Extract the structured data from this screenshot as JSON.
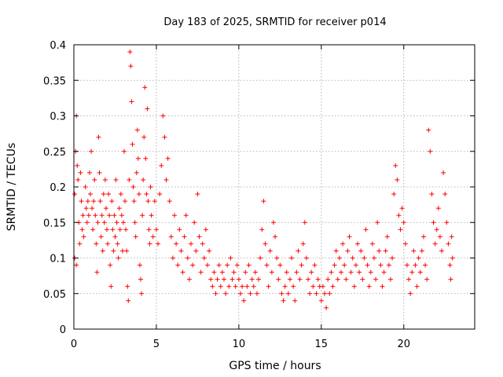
{
  "chart_data": {
    "type": "scatter",
    "title": "Day 183 of 2025, SRMTID for receiver p014",
    "xlabel": "GPS time / hours",
    "ylabel": "SRMTID / TECUs",
    "xlim": [
      0,
      24.3
    ],
    "ylim": [
      0,
      0.4
    ],
    "xticks": [
      0,
      5,
      10,
      15,
      20
    ],
    "xtick_labels": [
      "0",
      "5",
      "10",
      "15",
      "20"
    ],
    "yticks": [
      0,
      0.05,
      0.1,
      0.15,
      0.2,
      0.25,
      0.3,
      0.35,
      0.4
    ],
    "ytick_labels": [
      "0",
      "0.05",
      "0.1",
      "0.15",
      "0.2",
      "0.25",
      "0.3",
      "0.35",
      "0.4"
    ],
    "grid": true,
    "marker": "+",
    "color": "#ff0000",
    "series": [
      {
        "name": "SRMTID",
        "points": [
          [
            0.05,
            0.19
          ],
          [
            0.1,
            0.25
          ],
          [
            0.15,
            0.3
          ],
          [
            0.2,
            0.23
          ],
          [
            0.25,
            0.21
          ],
          [
            0.3,
            0.15
          ],
          [
            0.35,
            0.12
          ],
          [
            0.05,
            0.1
          ],
          [
            0.15,
            0.09
          ],
          [
            0.4,
            0.22
          ],
          [
            0.45,
            0.18
          ],
          [
            0.5,
            0.14
          ],
          [
            0.55,
            0.16
          ],
          [
            0.6,
            0.13
          ],
          [
            0.7,
            0.2
          ],
          [
            0.75,
            0.17
          ],
          [
            0.8,
            0.15
          ],
          [
            0.85,
            0.18
          ],
          [
            0.9,
            0.16
          ],
          [
            0.95,
            0.22
          ],
          [
            1.0,
            0.19
          ],
          [
            1.05,
            0.25
          ],
          [
            1.1,
            0.17
          ],
          [
            1.15,
            0.14
          ],
          [
            1.2,
            0.18
          ],
          [
            1.25,
            0.21
          ],
          [
            1.3,
            0.16
          ],
          [
            1.35,
            0.12
          ],
          [
            1.4,
            0.08
          ],
          [
            1.45,
            0.15
          ],
          [
            1.5,
            0.27
          ],
          [
            1.55,
            0.22
          ],
          [
            1.6,
            0.18
          ],
          [
            1.65,
            0.13
          ],
          [
            1.7,
            0.16
          ],
          [
            1.75,
            0.11
          ],
          [
            1.8,
            0.19
          ],
          [
            1.85,
            0.15
          ],
          [
            1.9,
            0.21
          ],
          [
            1.95,
            0.17
          ],
          [
            2.0,
            0.14
          ],
          [
            2.05,
            0.12
          ],
          [
            2.1,
            0.19
          ],
          [
            2.15,
            0.16
          ],
          [
            2.2,
            0.09
          ],
          [
            2.25,
            0.06
          ],
          [
            2.3,
            0.18
          ],
          [
            2.35,
            0.14
          ],
          [
            2.4,
            0.11
          ],
          [
            2.45,
            0.16
          ],
          [
            2.5,
            0.13
          ],
          [
            2.55,
            0.21
          ],
          [
            2.6,
            0.15
          ],
          [
            2.65,
            0.12
          ],
          [
            2.7,
            0.1
          ],
          [
            2.75,
            0.17
          ],
          [
            2.8,
            0.14
          ],
          [
            2.85,
            0.19
          ],
          [
            2.9,
            0.16
          ],
          [
            2.95,
            0.11
          ],
          [
            3.0,
            0.15
          ],
          [
            3.05,
            0.25
          ],
          [
            3.1,
            0.18
          ],
          [
            3.15,
            0.14
          ],
          [
            3.2,
            0.11
          ],
          [
            3.25,
            0.06
          ],
          [
            3.3,
            0.04
          ],
          [
            3.35,
            0.21
          ],
          [
            3.4,
            0.39
          ],
          [
            3.45,
            0.37
          ],
          [
            3.5,
            0.32
          ],
          [
            3.55,
            0.26
          ],
          [
            3.6,
            0.2
          ],
          [
            3.65,
            0.18
          ],
          [
            3.7,
            0.15
          ],
          [
            3.75,
            0.13
          ],
          [
            3.8,
            0.22
          ],
          [
            3.85,
            0.28
          ],
          [
            3.9,
            0.24
          ],
          [
            3.95,
            0.19
          ],
          [
            4.0,
            0.09
          ],
          [
            4.05,
            0.07
          ],
          [
            4.1,
            0.05
          ],
          [
            4.15,
            0.16
          ],
          [
            4.2,
            0.21
          ],
          [
            4.25,
            0.27
          ],
          [
            4.3,
            0.34
          ],
          [
            4.35,
            0.24
          ],
          [
            4.4,
            0.19
          ],
          [
            4.45,
            0.31
          ],
          [
            4.5,
            0.18
          ],
          [
            4.55,
            0.14
          ],
          [
            4.6,
            0.12
          ],
          [
            4.65,
            0.2
          ],
          [
            4.7,
            0.16
          ],
          [
            4.8,
            0.13
          ],
          [
            4.9,
            0.18
          ],
          [
            5.0,
            0.14
          ],
          [
            5.1,
            0.12
          ],
          [
            5.2,
            0.19
          ],
          [
            5.3,
            0.23
          ],
          [
            5.4,
            0.3
          ],
          [
            5.5,
            0.27
          ],
          [
            5.6,
            0.21
          ],
          [
            5.7,
            0.24
          ],
          [
            5.8,
            0.18
          ],
          [
            5.9,
            0.13
          ],
          [
            6.0,
            0.1
          ],
          [
            6.1,
            0.16
          ],
          [
            6.2,
            0.12
          ],
          [
            6.3,
            0.09
          ],
          [
            6.4,
            0.14
          ],
          [
            6.5,
            0.11
          ],
          [
            6.6,
            0.08
          ],
          [
            6.7,
            0.13
          ],
          [
            6.8,
            0.16
          ],
          [
            6.9,
            0.1
          ],
          [
            7.0,
            0.07
          ],
          [
            7.1,
            0.12
          ],
          [
            7.2,
            0.09
          ],
          [
            7.3,
            0.15
          ],
          [
            7.4,
            0.11
          ],
          [
            7.5,
            0.19
          ],
          [
            7.6,
            0.13
          ],
          [
            7.7,
            0.08
          ],
          [
            7.8,
            0.12
          ],
          [
            7.9,
            0.1
          ],
          [
            8.0,
            0.14
          ],
          [
            8.1,
            0.09
          ],
          [
            8.2,
            0.11
          ],
          [
            8.3,
            0.07
          ],
          [
            8.4,
            0.06
          ],
          [
            8.5,
            0.08
          ],
          [
            8.6,
            0.05
          ],
          [
            8.7,
            0.07
          ],
          [
            8.8,
            0.09
          ],
          [
            8.9,
            0.06
          ],
          [
            9.0,
            0.08
          ],
          [
            9.1,
            0.07
          ],
          [
            9.2,
            0.05
          ],
          [
            9.3,
            0.09
          ],
          [
            9.4,
            0.06
          ],
          [
            9.5,
            0.1
          ],
          [
            9.6,
            0.07
          ],
          [
            9.7,
            0.08
          ],
          [
            9.8,
            0.06
          ],
          [
            9.9,
            0.09
          ],
          [
            10.0,
            0.07
          ],
          [
            10.1,
            0.05
          ],
          [
            10.2,
            0.06
          ],
          [
            10.3,
            0.04
          ],
          [
            10.4,
            0.08
          ],
          [
            10.5,
            0.06
          ],
          [
            10.6,
            0.09
          ],
          [
            10.7,
            0.05
          ],
          [
            10.8,
            0.07
          ],
          [
            10.9,
            0.06
          ],
          [
            11.0,
            0.08
          ],
          [
            11.1,
            0.05
          ],
          [
            11.2,
            0.07
          ],
          [
            11.3,
            0.1
          ],
          [
            11.4,
            0.14
          ],
          [
            11.5,
            0.18
          ],
          [
            11.6,
            0.12
          ],
          [
            11.7,
            0.09
          ],
          [
            11.8,
            0.06
          ],
          [
            11.9,
            0.11
          ],
          [
            12.0,
            0.08
          ],
          [
            12.1,
            0.15
          ],
          [
            12.2,
            0.13
          ],
          [
            12.3,
            0.1
          ],
          [
            12.4,
            0.07
          ],
          [
            12.5,
            0.09
          ],
          [
            12.6,
            0.05
          ],
          [
            12.7,
            0.04
          ],
          [
            12.8,
            0.06
          ],
          [
            12.9,
            0.08
          ],
          [
            13.0,
            0.05
          ],
          [
            13.1,
            0.07
          ],
          [
            13.2,
            0.1
          ],
          [
            13.3,
            0.06
          ],
          [
            13.4,
            0.04
          ],
          [
            13.5,
            0.08
          ],
          [
            13.6,
            0.11
          ],
          [
            13.7,
            0.07
          ],
          [
            13.8,
            0.09
          ],
          [
            13.9,
            0.12
          ],
          [
            14.0,
            0.15
          ],
          [
            14.1,
            0.1
          ],
          [
            14.2,
            0.07
          ],
          [
            14.3,
            0.05
          ],
          [
            14.4,
            0.08
          ],
          [
            14.5,
            0.06
          ],
          [
            14.6,
            0.09
          ],
          [
            14.7,
            0.05
          ],
          [
            14.8,
            0.07
          ],
          [
            14.9,
            0.06
          ],
          [
            15.0,
            0.04
          ],
          [
            15.1,
            0.06
          ],
          [
            15.2,
            0.05
          ],
          [
            15.3,
            0.03
          ],
          [
            15.4,
            0.07
          ],
          [
            15.5,
            0.05
          ],
          [
            15.6,
            0.08
          ],
          [
            15.7,
            0.06
          ],
          [
            15.8,
            0.09
          ],
          [
            15.9,
            0.11
          ],
          [
            16.0,
            0.07
          ],
          [
            16.1,
            0.1
          ],
          [
            16.2,
            0.08
          ],
          [
            16.3,
            0.12
          ],
          [
            16.4,
            0.09
          ],
          [
            16.5,
            0.07
          ],
          [
            16.6,
            0.11
          ],
          [
            16.7,
            0.13
          ],
          [
            16.8,
            0.08
          ],
          [
            16.9,
            0.1
          ],
          [
            17.0,
            0.06
          ],
          [
            17.1,
            0.09
          ],
          [
            17.2,
            0.12
          ],
          [
            17.3,
            0.08
          ],
          [
            17.4,
            0.11
          ],
          [
            17.5,
            0.07
          ],
          [
            17.6,
            0.1
          ],
          [
            17.7,
            0.14
          ],
          [
            17.8,
            0.09
          ],
          [
            17.9,
            0.06
          ],
          [
            18.0,
            0.08
          ],
          [
            18.1,
            0.12
          ],
          [
            18.2,
            0.1
          ],
          [
            18.3,
            0.07
          ],
          [
            18.4,
            0.15
          ],
          [
            18.5,
            0.11
          ],
          [
            18.6,
            0.09
          ],
          [
            18.7,
            0.06
          ],
          [
            18.8,
            0.08
          ],
          [
            18.9,
            0.11
          ],
          [
            19.0,
            0.13
          ],
          [
            19.1,
            0.09
          ],
          [
            19.2,
            0.07
          ],
          [
            19.3,
            0.1
          ],
          [
            19.4,
            0.19
          ],
          [
            19.5,
            0.23
          ],
          [
            19.6,
            0.21
          ],
          [
            19.7,
            0.16
          ],
          [
            19.8,
            0.14
          ],
          [
            19.9,
            0.17
          ],
          [
            20.0,
            0.15
          ],
          [
            20.1,
            0.12
          ],
          [
            20.2,
            0.09
          ],
          [
            20.3,
            0.07
          ],
          [
            20.4,
            0.05
          ],
          [
            20.5,
            0.08
          ],
          [
            20.6,
            0.11
          ],
          [
            20.7,
            0.09
          ],
          [
            20.8,
            0.06
          ],
          [
            20.9,
            0.1
          ],
          [
            21.0,
            0.08
          ],
          [
            21.1,
            0.11
          ],
          [
            21.2,
            0.13
          ],
          [
            21.3,
            0.09
          ],
          [
            21.4,
            0.07
          ],
          [
            21.5,
            0.28
          ],
          [
            21.6,
            0.25
          ],
          [
            21.7,
            0.19
          ],
          [
            21.8,
            0.15
          ],
          [
            21.9,
            0.12
          ],
          [
            22.0,
            0.14
          ],
          [
            22.1,
            0.17
          ],
          [
            22.2,
            0.13
          ],
          [
            22.3,
            0.11
          ],
          [
            22.4,
            0.22
          ],
          [
            22.5,
            0.19
          ],
          [
            22.6,
            0.15
          ],
          [
            22.7,
            0.12
          ],
          [
            22.8,
            0.09
          ],
          [
            22.9,
            0.13
          ],
          [
            22.95,
            0.1
          ],
          [
            22.85,
            0.07
          ]
        ]
      }
    ]
  }
}
